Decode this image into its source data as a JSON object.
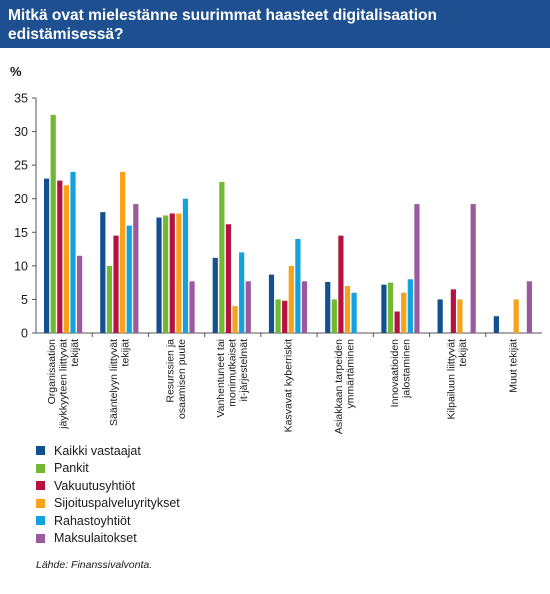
{
  "title": {
    "line1": "Mitkä ovat mielestänne suurimmat haasteet digitalisaation",
    "line2": "edistämisessä?"
  },
  "chart_data": {
    "type": "bar",
    "ylabel": "%",
    "ylim": [
      0,
      35
    ],
    "yticks": [
      "0",
      "5",
      "10",
      "15",
      "20",
      "25",
      "30",
      "35"
    ],
    "grid": false,
    "legend_placement": "bottom-left",
    "categories": [
      [
        "Organisaation",
        "jäykkyyteen liittyvät",
        "tekijät"
      ],
      [
        "Sääntelyyn liittyvät",
        "tekijät"
      ],
      [
        "Resurssien ja",
        "osaamisen puute"
      ],
      [
        "Vanhentuneet tai",
        "monimutkaiset",
        "it-järjestelmät"
      ],
      [
        "Kasvavat kyberriskit"
      ],
      [
        "Asiakkaan tarpeiden",
        "ymmärtäminen"
      ],
      [
        "Innovaatioiden",
        "jalostaminen"
      ],
      [
        "Kilpailuun liittyvät",
        "tekijät"
      ],
      [
        "Muut tekijät"
      ]
    ],
    "series": [
      {
        "name": "Kaikki vastaajat",
        "color": "#12508f",
        "values": [
          23,
          18,
          17.2,
          11.2,
          8.7,
          7.6,
          7.2,
          5,
          2.5
        ]
      },
      {
        "name": "Pankit",
        "color": "#72b832",
        "values": [
          32.5,
          10,
          17.5,
          22.5,
          5,
          5,
          7.5,
          0,
          0
        ]
      },
      {
        "name": "Vakuutusyhtiöt",
        "color": "#b5123f",
        "values": [
          22.7,
          14.5,
          17.8,
          16.2,
          4.8,
          14.5,
          3.2,
          6.5,
          0
        ]
      },
      {
        "name": "Sijoituspalveluyritykset",
        "color": "#f7a21b",
        "values": [
          22,
          24,
          17.8,
          4,
          10,
          7,
          6,
          5,
          5
        ]
      },
      {
        "name": "Rahastoyhtiöt",
        "color": "#12a2df",
        "values": [
          24,
          16,
          20,
          12,
          14,
          6,
          8,
          0,
          0
        ]
      },
      {
        "name": "Maksulaitokset",
        "color": "#9b5a9e",
        "values": [
          11.5,
          19.2,
          7.7,
          7.7,
          7.7,
          0,
          19.2,
          19.2,
          7.7
        ]
      }
    ]
  },
  "source": "Lähde: Finanssivalvonta."
}
